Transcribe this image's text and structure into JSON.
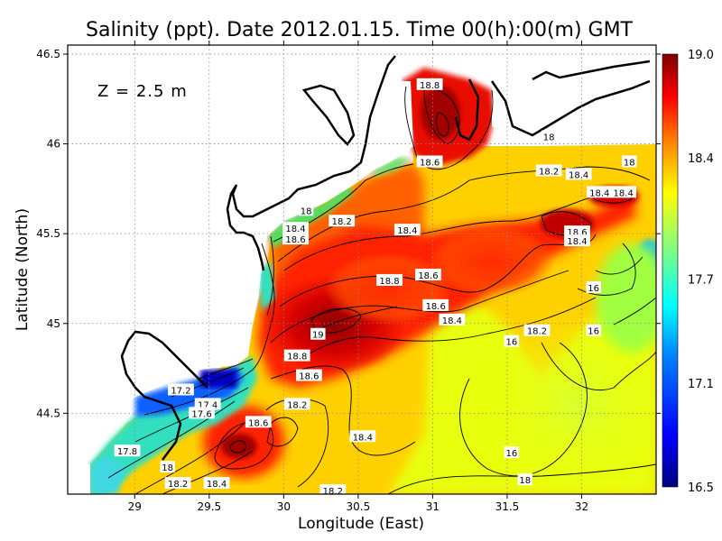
{
  "chart_data": {
    "type": "heatmap",
    "title": "Salinity (ppt). Date 2012.01.15. Time 00(h):00(m) GMT",
    "xlabel": "Longitude (East)",
    "ylabel": "Latitude (North)",
    "annotation": "Z = 2.5 m",
    "xlim": [
      28.55,
      32.5
    ],
    "ylim": [
      44.05,
      46.55
    ],
    "x_ticks": [
      29,
      29.5,
      30,
      30.5,
      31,
      31.5,
      32
    ],
    "x_tick_labels": [
      "29",
      "29.5",
      "30",
      "30.5",
      "31",
      "31.5",
      "32"
    ],
    "y_ticks": [
      44.5,
      45,
      45.5,
      46,
      46.5
    ],
    "y_tick_labels": [
      "44.5",
      "45",
      "45.5",
      "46",
      "46.5"
    ],
    "grid": true,
    "colorbar": {
      "range": [
        16.5,
        19.0
      ],
      "tick_values": [
        19.0,
        18.4,
        17.7,
        17.1,
        16.5
      ],
      "tick_labels": [
        "19.0",
        "18.4",
        "17.7",
        "17.1",
        "16.5"
      ],
      "colors": [
        "#00007f",
        "#0000ff",
        "#0080ff",
        "#00ffff",
        "#80ff80",
        "#ffff00",
        "#ff8000",
        "#ff0000",
        "#7f0000"
      ]
    },
    "contour_labels": [
      {
        "text": "18.8",
        "lon": 30.98,
        "lat": 46.33
      },
      {
        "text": "18",
        "lon": 31.78,
        "lat": 46.04
      },
      {
        "text": "18.6",
        "lon": 30.98,
        "lat": 45.9
      },
      {
        "text": "18.2",
        "lon": 31.78,
        "lat": 45.85
      },
      {
        "text": "18.4",
        "lon": 31.98,
        "lat": 45.83
      },
      {
        "text": "18",
        "lon": 32.32,
        "lat": 45.9
      },
      {
        "text": "18.4",
        "lon": 32.12,
        "lat": 45.73
      },
      {
        "text": "18.4",
        "lon": 32.28,
        "lat": 45.73
      },
      {
        "text": "18",
        "lon": 30.15,
        "lat": 45.63
      },
      {
        "text": "18.2",
        "lon": 30.39,
        "lat": 45.57
      },
      {
        "text": "18.4",
        "lon": 30.08,
        "lat": 45.53
      },
      {
        "text": "18.4",
        "lon": 30.83,
        "lat": 45.52
      },
      {
        "text": "18.6",
        "lon": 31.97,
        "lat": 45.51
      },
      {
        "text": "18.6",
        "lon": 30.08,
        "lat": 45.47
      },
      {
        "text": "18.4",
        "lon": 31.97,
        "lat": 45.46
      },
      {
        "text": "18.6",
        "lon": 30.97,
        "lat": 45.27
      },
      {
        "text": "18.8",
        "lon": 30.71,
        "lat": 45.24
      },
      {
        "text": "16",
        "lon": 32.08,
        "lat": 45.2
      },
      {
        "text": "18.6",
        "lon": 31.02,
        "lat": 45.1
      },
      {
        "text": "18.4",
        "lon": 31.13,
        "lat": 45.02
      },
      {
        "text": "18.2",
        "lon": 31.7,
        "lat": 44.96
      },
      {
        "text": "16",
        "lon": 32.08,
        "lat": 44.96
      },
      {
        "text": "19",
        "lon": 30.23,
        "lat": 44.94
      },
      {
        "text": "16",
        "lon": 31.53,
        "lat": 44.9
      },
      {
        "text": "18.8",
        "lon": 30.09,
        "lat": 44.82
      },
      {
        "text": "18.6",
        "lon": 30.17,
        "lat": 44.71
      },
      {
        "text": "17.2",
        "lon": 29.31,
        "lat": 44.63
      },
      {
        "text": "18.2",
        "lon": 30.09,
        "lat": 44.55
      },
      {
        "text": "17.4",
        "lon": 29.49,
        "lat": 44.55
      },
      {
        "text": "17.6",
        "lon": 29.45,
        "lat": 44.5
      },
      {
        "text": "18.6",
        "lon": 29.83,
        "lat": 44.45
      },
      {
        "text": "18.4",
        "lon": 30.53,
        "lat": 44.37
      },
      {
        "text": "17.8",
        "lon": 28.95,
        "lat": 44.29
      },
      {
        "text": "16",
        "lon": 31.53,
        "lat": 44.28
      },
      {
        "text": "18",
        "lon": 29.22,
        "lat": 44.2
      },
      {
        "text": "18",
        "lon": 31.62,
        "lat": 44.13
      },
      {
        "text": "18.2",
        "lon": 29.29,
        "lat": 44.11
      },
      {
        "text": "18.4",
        "lon": 29.55,
        "lat": 44.11
      },
      {
        "text": "18.2",
        "lon": 30.33,
        "lat": 44.07
      }
    ]
  }
}
